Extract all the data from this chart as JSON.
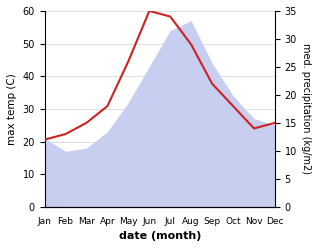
{
  "months": [
    "Jan",
    "Feb",
    "Mar",
    "Apr",
    "May",
    "Jun",
    "Jul",
    "Aug",
    "Sep",
    "Oct",
    "Nov",
    "Dec"
  ],
  "temp": [
    21,
    17,
    18,
    23,
    32,
    43,
    54,
    57,
    44,
    34,
    27,
    25
  ],
  "precip": [
    12,
    13,
    15,
    18,
    26,
    35,
    34,
    29,
    22,
    18,
    14,
    15
  ],
  "temp_fill": "#c8cef0",
  "precip_color": "#cc2222",
  "temp_ylim": [
    0,
    60
  ],
  "precip_ylim": [
    0,
    35
  ],
  "xlabel": "date (month)",
  "ylabel_left": "max temp (C)",
  "ylabel_right": "med. precipitation (kg/m2)",
  "bg_color": "#ffffff",
  "grid_color": "#d0d0d0"
}
